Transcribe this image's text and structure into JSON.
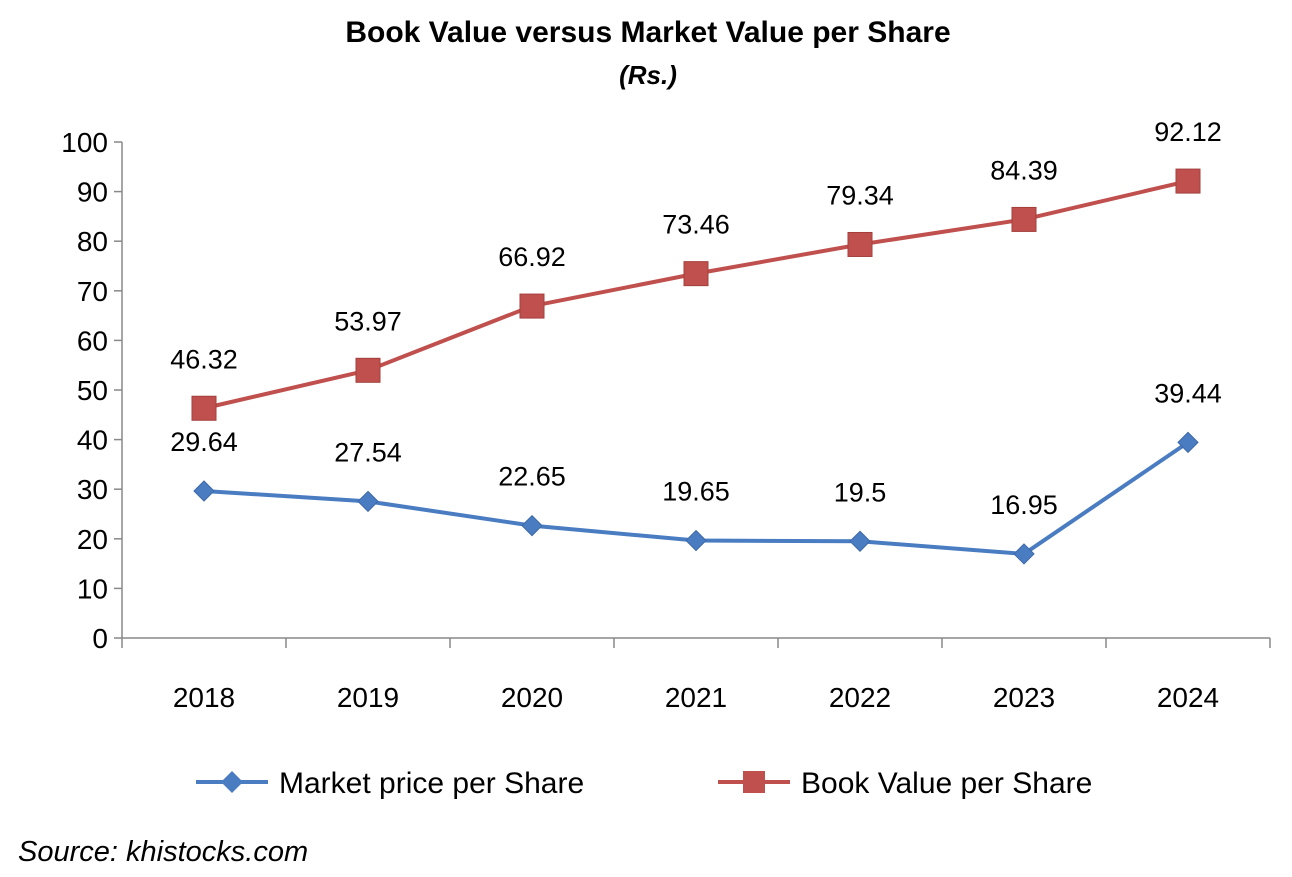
{
  "chart_data": {
    "type": "line",
    "title": "Book Value versus Market Value per Share",
    "subtitle": "(Rs.)",
    "categories": [
      "2018",
      "2019",
      "2020",
      "2021",
      "2022",
      "2023",
      "2024"
    ],
    "ylim": [
      0,
      100
    ],
    "yticks": [
      "0",
      "10",
      "20",
      "30",
      "40",
      "50",
      "60",
      "70",
      "80",
      "90",
      "100"
    ],
    "grid": false,
    "legend_position": "bottom",
    "series": [
      {
        "name": "Market price per Share",
        "color": "#4a7cc2",
        "marker": "diamond",
        "values": [
          29.64,
          27.54,
          22.65,
          19.65,
          19.5,
          16.95,
          39.44
        ],
        "labels": [
          "29.64",
          "27.54",
          "22.65",
          "19.65",
          "19.5",
          "16.95",
          "39.44"
        ]
      },
      {
        "name": "Book Value per Share",
        "color": "#c0504d",
        "marker": "square",
        "values": [
          46.32,
          53.97,
          66.92,
          73.46,
          79.34,
          84.39,
          92.12
        ],
        "labels": [
          "46.32",
          "53.97",
          "66.92",
          "73.46",
          "79.34",
          "84.39",
          "92.12"
        ]
      }
    ],
    "source": "Source: khistocks.com"
  }
}
